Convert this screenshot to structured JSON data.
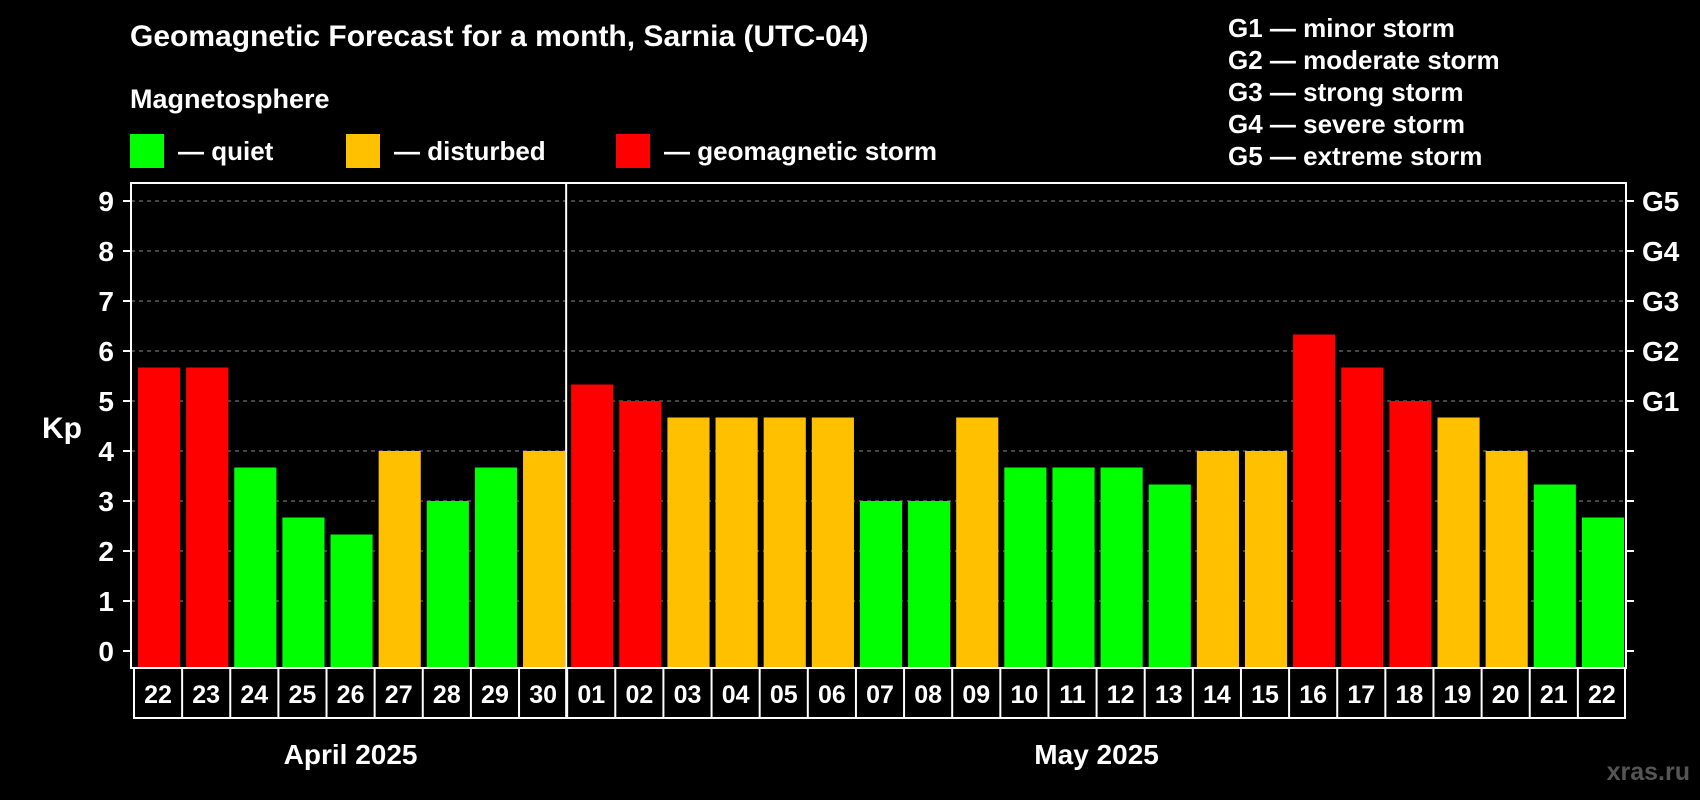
{
  "title": "Geomagnetic Forecast for a month, Sarnia (UTC-04)",
  "subtitle": "Magnetosphere",
  "legend": [
    {
      "label": "— quiet",
      "color": "#00ff00"
    },
    {
      "label": "— disturbed",
      "color": "#ffc000"
    },
    {
      "label": "— geomagnetic storm",
      "color": "#ff0000"
    }
  ],
  "g_scale": [
    "G1 — minor storm",
    "G2 — moderate storm",
    "G3 — strong storm",
    "G4 — severe storm",
    "G5 — extreme storm"
  ],
  "watermark": "xras.ru",
  "chart_data": {
    "type": "bar",
    "title": "Geomagnetic Forecast for a month, Sarnia (UTC-04)",
    "ylabel": "Kp",
    "ylim": [
      0,
      9
    ],
    "yticks": [
      "0",
      "1",
      "2",
      "3",
      "4",
      "5",
      "6",
      "7",
      "8",
      "9"
    ],
    "right_ticks": [
      {
        "value": 5,
        "label": "G1"
      },
      {
        "value": 6,
        "label": "G2"
      },
      {
        "value": 7,
        "label": "G3"
      },
      {
        "value": 8,
        "label": "G4"
      },
      {
        "value": 9,
        "label": "G5"
      }
    ],
    "grid": true,
    "categories": [
      "22",
      "23",
      "24",
      "25",
      "26",
      "27",
      "28",
      "29",
      "30",
      "01",
      "02",
      "03",
      "04",
      "05",
      "06",
      "07",
      "08",
      "09",
      "10",
      "11",
      "12",
      "13",
      "14",
      "15",
      "16",
      "17",
      "18",
      "19",
      "20",
      "21",
      "22"
    ],
    "values": [
      5.67,
      5.67,
      3.67,
      2.67,
      2.33,
      4,
      3,
      3.67,
      4,
      5.33,
      5,
      4.67,
      4.67,
      4.67,
      4.67,
      3,
      3,
      4.67,
      3.67,
      3.67,
      3.67,
      3.33,
      4,
      4,
      6.33,
      5.67,
      5,
      4.67,
      4,
      3.33,
      2.67
    ],
    "levels": [
      "storm",
      "storm",
      "quiet",
      "quiet",
      "quiet",
      "disturbed",
      "quiet",
      "quiet",
      "disturbed",
      "storm",
      "storm",
      "disturbed",
      "disturbed",
      "disturbed",
      "disturbed",
      "quiet",
      "quiet",
      "disturbed",
      "quiet",
      "quiet",
      "quiet",
      "quiet",
      "disturbed",
      "disturbed",
      "storm",
      "storm",
      "storm",
      "disturbed",
      "disturbed",
      "quiet",
      "quiet"
    ],
    "level_colors": {
      "quiet": "#00ff00",
      "disturbed": "#ffc000",
      "storm": "#ff0000"
    },
    "months": [
      {
        "label": "April 2025",
        "start": 0,
        "count": 9
      },
      {
        "label": "May 2025",
        "start": 9,
        "count": 22
      }
    ]
  }
}
